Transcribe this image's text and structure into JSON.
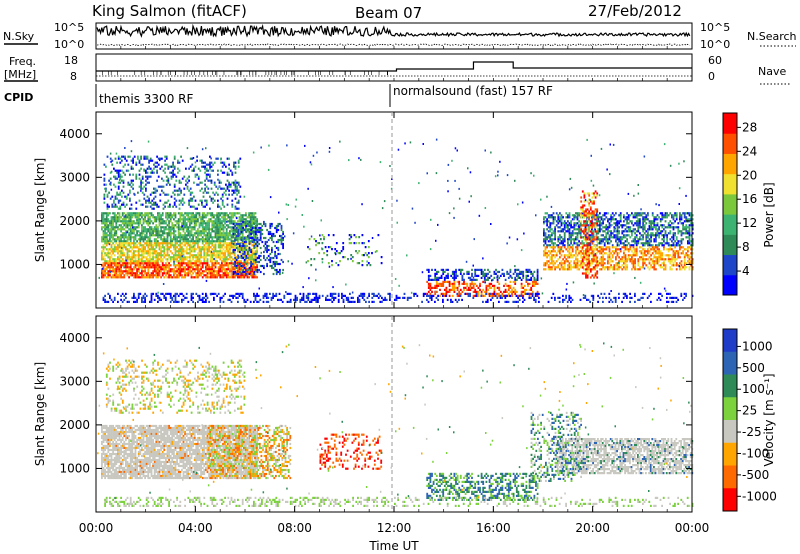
{
  "header": {
    "radar": "King Salmon (fitACF)",
    "beam": "Beam 07",
    "date": "27/Feb/2012"
  },
  "top_panels": {
    "nsky_label": "N.Sky",
    "nsky_ticks": [
      "10^5",
      "10^0"
    ],
    "nsearch_label": "N.Search",
    "nsearch_ticks": [
      "10^5",
      "10^0"
    ],
    "freq_label_1": "Freq.",
    "freq_label_2": "[MHz]",
    "freq_ticks": [
      "18",
      "8"
    ],
    "nave_label": "Nave",
    "nave_ticks": [
      "60",
      "0"
    ],
    "cpid_label": "CPID",
    "cpid_modes": [
      "themis 3300 RF",
      "normalsound (fast) 157 RF"
    ]
  },
  "chart_data": [
    {
      "type": "heatmap",
      "title": "",
      "xlabel": "",
      "ylabel": "Slant Range [km]",
      "yticks": [
        "1000",
        "2000",
        "3000",
        "4000"
      ],
      "xticks": [],
      "ylim": [
        0,
        4500
      ],
      "xlim_hours": [
        0,
        24
      ],
      "colorbar": {
        "label": "Power [dB]",
        "ticks": [
          "4",
          "8",
          "12",
          "16",
          "20",
          "24",
          "28"
        ],
        "colors": [
          "#0000ff",
          "#1e46c8",
          "#2e8b57",
          "#3cb371",
          "#7cc83c",
          "#f0e030",
          "#ffa500",
          "#ff5000",
          "#ff0000"
        ]
      },
      "scatter_regions": [
        {
          "start_h": 0.2,
          "end_h": 6.5,
          "range_km": [
            700,
            2200
          ],
          "level": "high"
        },
        {
          "start_h": 13.5,
          "end_h": 17.5,
          "range_km": [
            300,
            900
          ],
          "level": "high"
        },
        {
          "start_h": 18.0,
          "end_h": 24.0,
          "range_km": [
            900,
            2200
          ],
          "level": "medium"
        }
      ]
    },
    {
      "type": "heatmap",
      "title": "",
      "xlabel": "Time UT",
      "ylabel": "Slant Range [km]",
      "yticks": [
        "1000",
        "2000",
        "3000",
        "4000"
      ],
      "xticks": [
        "00:00",
        "04:00",
        "08:00",
        "12:00",
        "16:00",
        "20:00",
        "00:00"
      ],
      "ylim": [
        0,
        4500
      ],
      "xlim_hours": [
        0,
        24
      ],
      "colorbar": {
        "label": "Velocity [m s⁻¹]",
        "ticks": [
          "1000",
          "500",
          "100",
          "25",
          "-25",
          "-100",
          "-500",
          "-1000"
        ],
        "colors": [
          "#1e3cc8",
          "#2e64b4",
          "#2e8b57",
          "#7cd23c",
          "#c8c8c0",
          "#ffa500",
          "#ff6a00",
          "#ff0000"
        ]
      },
      "scatter_regions": [
        {
          "start_h": 0.2,
          "end_h": 6.5,
          "range_km": [
            800,
            2000
          ],
          "level": "ground"
        },
        {
          "start_h": 13.5,
          "end_h": 17.5,
          "range_km": [
            300,
            900
          ],
          "level": "positive"
        },
        {
          "start_h": 18.5,
          "end_h": 24.0,
          "range_km": [
            900,
            1700
          ],
          "level": "ground"
        }
      ]
    }
  ]
}
